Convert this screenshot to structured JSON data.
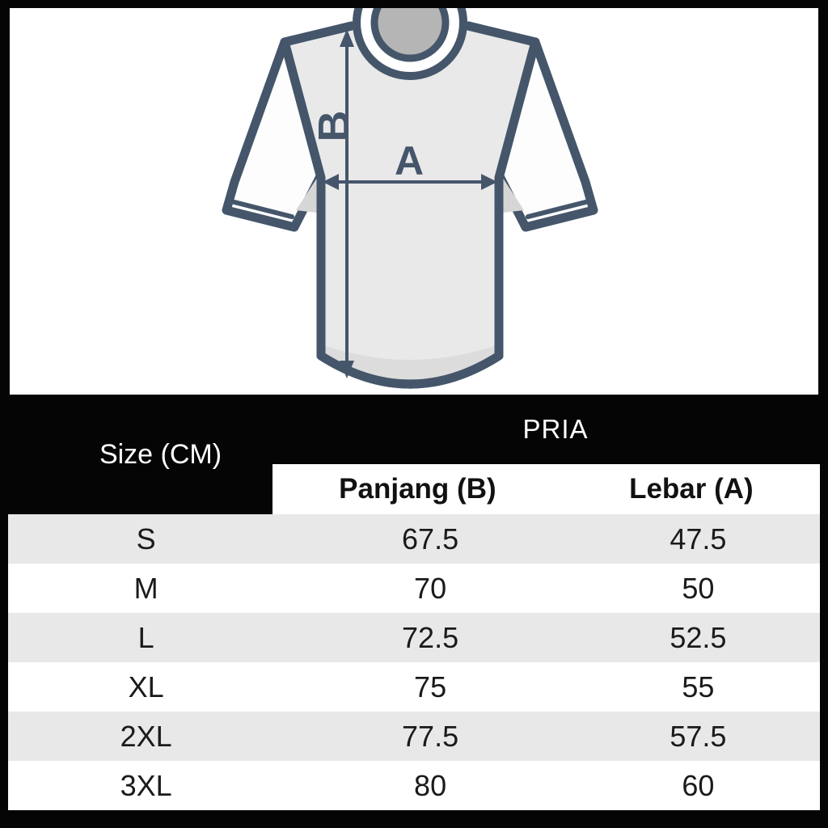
{
  "diagram": {
    "width_label": "A",
    "length_label": "B"
  },
  "table": {
    "corner_header": "Size (CM)",
    "group_header": "PRIA",
    "col_headers": [
      "Panjang (B)",
      "Lebar (A)"
    ],
    "rows": [
      {
        "size": "S",
        "panjang": "67.5",
        "lebar": "47.5"
      },
      {
        "size": "M",
        "panjang": "70",
        "lebar": "50"
      },
      {
        "size": "L",
        "panjang": "72.5",
        "lebar": "52.5"
      },
      {
        "size": "XL",
        "panjang": "75",
        "lebar": "55"
      },
      {
        "size": "2XL",
        "panjang": "77.5",
        "lebar": "57.5"
      },
      {
        "size": "3XL",
        "panjang": "80",
        "lebar": "60"
      }
    ]
  },
  "colors": {
    "frame_black": "#050505",
    "panel_white": "#ffffff",
    "outline_navy": "#45566b",
    "shirt_body_gray": "#e9e9e9",
    "shirt_hem_gray": "#dcdcdc",
    "collar_gray": "#b5b5b5",
    "row_stripe_gray": "#e8e8e8",
    "text_dark": "#1a1a1a"
  }
}
